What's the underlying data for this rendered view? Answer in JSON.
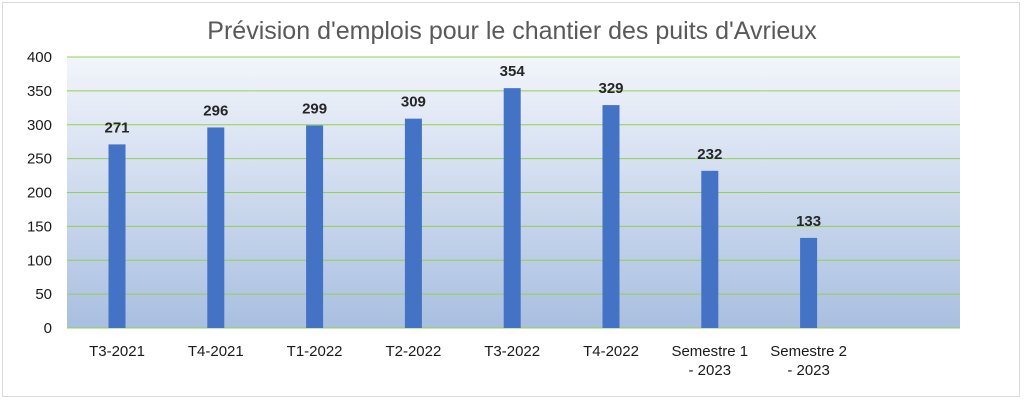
{
  "chart_data": {
    "type": "bar",
    "title": "Prévision d'emplois pour le chantier des puits d'Avrieux",
    "xlabel": "",
    "ylabel": "",
    "ylim": [
      0,
      400
    ],
    "yticks": [
      "0",
      "50",
      "100",
      "150",
      "200",
      "250",
      "300",
      "350",
      "400"
    ],
    "grid": true,
    "categories": [
      [
        "T3-2021"
      ],
      [
        "T4-2021"
      ],
      [
        "T1-2022"
      ],
      [
        "T2-2022"
      ],
      [
        "T3-2022"
      ],
      [
        "T4-2022"
      ],
      [
        "Semestre  1",
        "- 2023"
      ],
      [
        "Semestre  2",
        "- 2023"
      ]
    ],
    "values": [
      271,
      296,
      299,
      309,
      354,
      329,
      232,
      133
    ],
    "colors": {
      "bar": "#4472c4",
      "grid": "#92d050",
      "plot_bg_top": "#f2f5fb",
      "plot_bg_bottom": "#a9bfe0"
    }
  }
}
